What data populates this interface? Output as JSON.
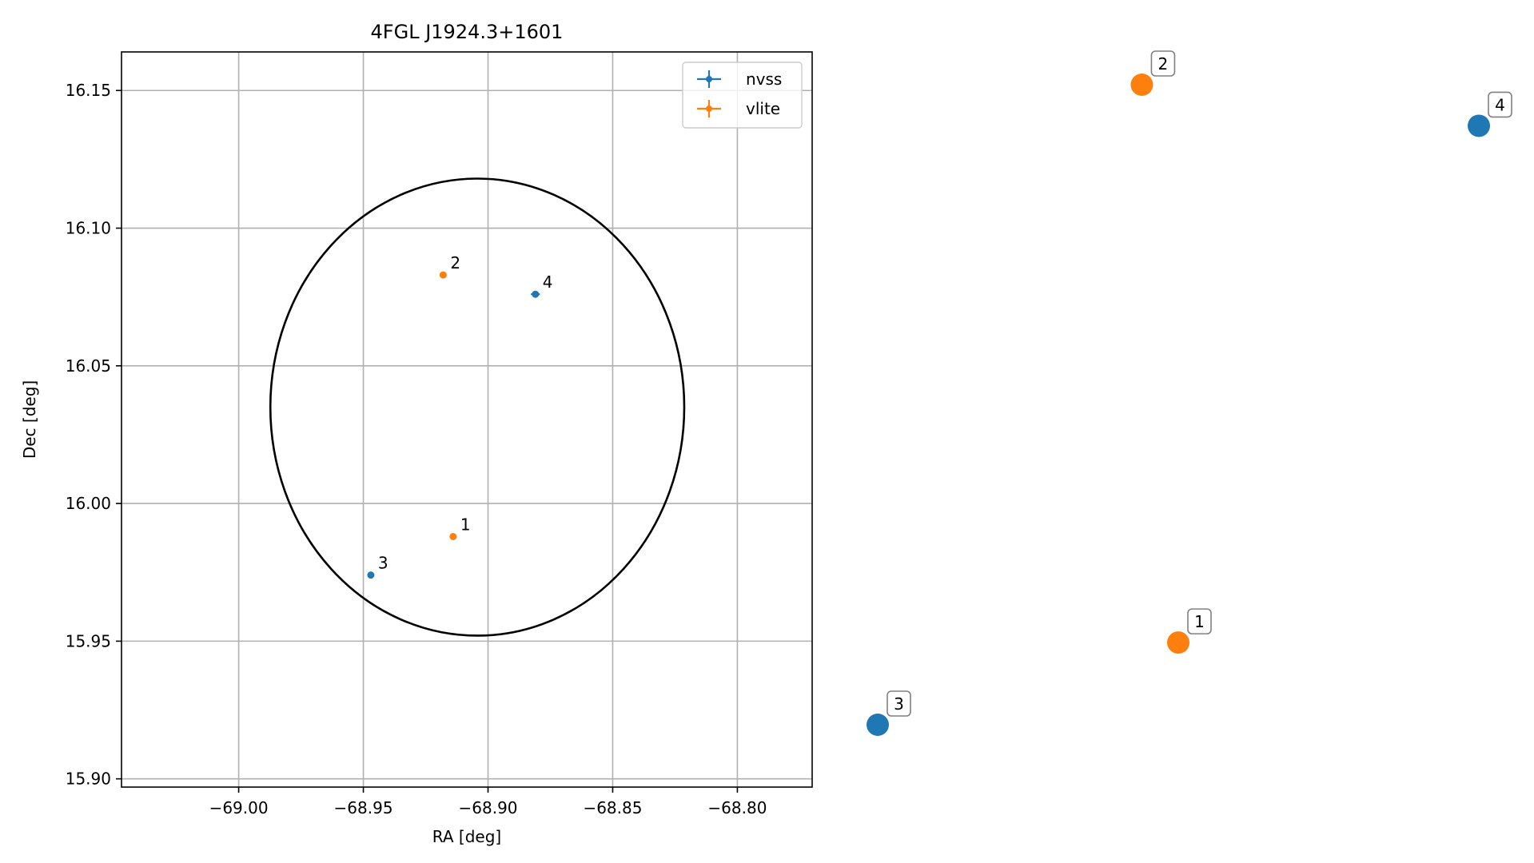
{
  "chart_data": {
    "type": "scatter",
    "title": "4FGL J1924.3+1601",
    "xlabel": "RA [deg]",
    "ylabel": "Dec [deg]",
    "xlim": [
      -69.047,
      -68.77
    ],
    "ylim": [
      15.897,
      16.164
    ],
    "xticks": [
      -69.0,
      -68.95,
      -68.9,
      -68.85,
      -68.8
    ],
    "xtick_labels": [
      "−69.00",
      "−68.95",
      "−68.90",
      "−68.85",
      "−68.80"
    ],
    "yticks": [
      15.9,
      15.95,
      16.0,
      16.05,
      16.1,
      16.15
    ],
    "ytick_labels": [
      "15.90",
      "15.95",
      "16.00",
      "16.05",
      "16.10",
      "16.15"
    ],
    "grid": true,
    "legend_position": "upper right",
    "series": [
      {
        "name": "nvss",
        "color": "#1f77b4",
        "points": [
          {
            "label": "3",
            "ra": -68.947,
            "dec": 15.974,
            "err_ra": 0.0,
            "err_dec": 0.0
          },
          {
            "label": "4",
            "ra": -68.881,
            "dec": 16.076,
            "err_ra": 0.0018,
            "err_dec": 0.0012
          }
        ]
      },
      {
        "name": "vlite",
        "color": "#ff7f0e",
        "points": [
          {
            "label": "1",
            "ra": -68.914,
            "dec": 15.988,
            "err_ra": 0.0,
            "err_dec": 0.0
          },
          {
            "label": "2",
            "ra": -68.918,
            "dec": 16.083,
            "err_ra": 0.0,
            "err_dec": 0.0
          }
        ]
      }
    ],
    "localization_ellipse": {
      "center_ra": -68.9043,
      "center_dec": 16.035,
      "semi_axis_ra": 0.083,
      "semi_axis_dec": 0.083,
      "color": "#000000"
    },
    "side_panel": {
      "type": "scatter",
      "points": [
        {
          "label": "1",
          "color": "#ff7f0e",
          "ra": -68.914,
          "dec": 15.988
        },
        {
          "label": "2",
          "color": "#ff7f0e",
          "ra": -68.918,
          "dec": 16.083
        },
        {
          "label": "3",
          "color": "#1f77b4",
          "ra": -68.947,
          "dec": 15.974
        },
        {
          "label": "4",
          "color": "#1f77b4",
          "ra": -68.881,
          "dec": 16.076
        }
      ]
    }
  }
}
